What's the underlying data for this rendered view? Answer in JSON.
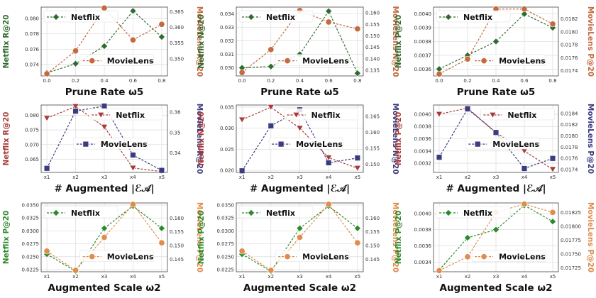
{
  "colors": {
    "netflix_green": "#2f6b2f",
    "movielens_orange": "#c46a3e",
    "netflix_red": "#a83a3a",
    "movielens_navy": "#3b3b80",
    "netflix_green2": "#2b8a2b",
    "movielens_orange2": "#e08c4c",
    "grid": "#d6d6d6",
    "axis": "#444444"
  },
  "chart_data": [
    {
      "id": "r0c0",
      "type": "line",
      "xlabel": "Prune Rate ω5",
      "x_is_categorical": false,
      "x": [
        0.0,
        0.2,
        0.4,
        0.6,
        0.8
      ],
      "xticks": [
        "0.0",
        "0.2",
        "0.4",
        "0.6",
        "0.8"
      ],
      "xlim": [
        -0.04,
        0.84
      ],
      "left": {
        "ylabel": "Netflix R@20",
        "color_key": "netflix_green",
        "ylim": [
          0.0725,
          0.0815
        ],
        "yticks": [
          "0.074",
          "0.076",
          "0.078",
          "0.080"
        ],
        "ytick_values": [
          0.074,
          0.076,
          0.078,
          0.08
        ]
      },
      "right": {
        "ylabel": "MovieLens R@20",
        "color_key": "movielens_orange",
        "ylim": [
          0.3445,
          0.3665
        ],
        "yticks": [
          "0.350",
          "0.355",
          "0.360",
          "0.365"
        ],
        "ytick_values": [
          0.35,
          0.355,
          0.36,
          0.365
        ]
      },
      "series": [
        {
          "name": "Netflix",
          "axis": "left",
          "marker": "diamond",
          "values": [
            0.0729,
            0.0741,
            0.0764,
            0.081,
            0.0776
          ]
        },
        {
          "name": "MovieLens",
          "axis": "right",
          "marker": "circle",
          "values": [
            0.3452,
            0.3525,
            0.3662,
            0.356,
            0.361
          ]
        }
      ],
      "legend": [
        {
          "name": "Netflix",
          "pos": "top-left"
        },
        {
          "name": "MovieLens",
          "pos": "lower-right"
        }
      ]
    },
    {
      "id": "r0c1",
      "type": "line",
      "xlabel": "Prune Rate ω5",
      "x_is_categorical": false,
      "x": [
        0.0,
        0.2,
        0.4,
        0.6,
        0.8
      ],
      "xticks": [
        "0.0",
        "0.2",
        "0.4",
        "0.6",
        "0.8"
      ],
      "xlim": [
        -0.04,
        0.84
      ],
      "left": {
        "ylabel": "Netflix N@20",
        "color_key": "netflix_green",
        "ylim": [
          0.0294,
          0.0345
        ],
        "yticks": [
          "0.030",
          "0.031",
          "0.032",
          "0.033",
          "0.034"
        ],
        "ytick_values": [
          0.03,
          0.031,
          0.032,
          0.033,
          0.034
        ]
      },
      "right": {
        "ylabel": "MovieLens N@20",
        "color_key": "movielens_orange",
        "ylim": [
          0.1325,
          0.1625
        ],
        "yticks": [
          "0.135",
          "0.140",
          "0.145",
          "0.150",
          "0.155",
          "0.160"
        ],
        "ytick_values": [
          0.135,
          0.14,
          0.145,
          0.15,
          0.155,
          0.16
        ]
      },
      "series": [
        {
          "name": "Netflix",
          "axis": "left",
          "marker": "diamond",
          "values": [
            0.03,
            0.0301,
            0.031,
            0.0342,
            0.0296
          ]
        },
        {
          "name": "MovieLens",
          "axis": "right",
          "marker": "circle",
          "values": [
            0.134,
            0.144,
            0.161,
            0.156,
            0.153
          ]
        }
      ],
      "legend": [
        {
          "name": "Netflix",
          "pos": "top-left"
        },
        {
          "name": "MovieLens",
          "pos": "lower-right"
        }
      ]
    },
    {
      "id": "r0c2",
      "type": "line",
      "xlabel": "Prune Rate ω5",
      "x_is_categorical": false,
      "x": [
        0.0,
        0.2,
        0.4,
        0.6,
        0.8
      ],
      "xticks": [
        "0.0",
        "0.2",
        "0.4",
        "0.6",
        "0.8"
      ],
      "xlim": [
        -0.04,
        0.84
      ],
      "left": {
        "ylabel": "Netflix P@20",
        "color_key": "netflix_green",
        "ylim": [
          0.00355,
          0.00405
        ],
        "yticks": [
          "0.0036",
          "0.0037",
          "0.0038",
          "0.0039",
          "0.0040"
        ],
        "ytick_values": [
          0.0036,
          0.0037,
          0.0038,
          0.0039,
          0.004
        ]
      },
      "right": {
        "ylabel": "MovieLens P@20",
        "color_key": "movielens_orange",
        "ylim": [
          0.01732,
          0.01838
        ],
        "yticks": [
          "0.0174",
          "0.0176",
          "0.0178",
          "0.0180",
          "0.0182"
        ],
        "ytick_values": [
          0.0174,
          0.0176,
          0.0178,
          0.018,
          0.0182
        ]
      },
      "series": [
        {
          "name": "Netflix",
          "axis": "left",
          "marker": "diamond",
          "values": [
            0.0036,
            0.0037,
            0.0038,
            0.004,
            0.0039
          ]
        },
        {
          "name": "MovieLens",
          "axis": "right",
          "marker": "circle",
          "values": [
            0.01735,
            0.01758,
            0.01835,
            0.01835,
            0.01812
          ]
        }
      ],
      "legend": [
        {
          "name": "Netflix",
          "pos": "top-left"
        },
        {
          "name": "MovieLens",
          "pos": "lower-right"
        }
      ]
    },
    {
      "id": "r1c0",
      "type": "line",
      "xlabel": "# Augmented |ℰ𝒜|",
      "x_is_categorical": true,
      "x": [
        1,
        2,
        3,
        4,
        5
      ],
      "xticks": [
        "x1",
        "x2",
        "x3",
        "x4",
        "x5"
      ],
      "xlim": [
        0.8,
        5.2
      ],
      "left": {
        "ylabel": "Netflix R@20",
        "color_key": "netflix_red",
        "ylim": [
          0.0605,
          0.0835
        ],
        "yticks": [
          "0.065",
          "0.070",
          "0.075",
          "0.080"
        ],
        "ytick_values": [
          0.065,
          0.07,
          0.075,
          0.08
        ]
      },
      "right": {
        "ylabel": "MovieLens R@20",
        "color_key": "movielens_navy",
        "ylim": [
          0.3305,
          0.3635
        ],
        "yticks": [
          "0.34",
          "0.35",
          "0.36"
        ],
        "ytick_values": [
          0.34,
          0.35,
          0.36
        ]
      },
      "series": [
        {
          "name": "Netflix",
          "axis": "left",
          "marker": "triangle-down",
          "values": [
            0.079,
            0.083,
            0.076,
            0.062,
            0.0608
          ]
        },
        {
          "name": "MovieLens",
          "axis": "right",
          "marker": "square",
          "values": [
            0.3325,
            0.3605,
            0.363,
            0.339,
            0.3315
          ]
        }
      ],
      "legend": [
        {
          "name": "Netflix",
          "pos": "top-right"
        },
        {
          "name": "MovieLens",
          "pos": "center"
        }
      ]
    },
    {
      "id": "r1c1",
      "type": "line",
      "xlabel": "# Augmented |ℰ𝒜|",
      "x_is_categorical": true,
      "x": [
        1,
        2,
        3,
        4,
        5
      ],
      "xticks": [
        "x1",
        "x2",
        "x3",
        "x4",
        "x5"
      ],
      "xlim": [
        0.8,
        5.2
      ],
      "left": {
        "ylabel": "Netflix N@20",
        "color_key": "netflix_red",
        "ylim": [
          0.0195,
          0.0355
        ],
        "yticks": [
          "0.020",
          "0.025",
          "0.030",
          "0.035"
        ],
        "ytick_values": [
          0.02,
          0.025,
          0.03,
          0.035
        ]
      },
      "right": {
        "ylabel": "MovieLens N@20",
        "color_key": "movielens_navy",
        "ylim": [
          0.1475,
          0.1685
        ],
        "yticks": [
          "0.150",
          "0.155",
          "0.160",
          "0.165"
        ],
        "ytick_values": [
          0.15,
          0.155,
          0.16,
          0.165
        ]
      },
      "series": [
        {
          "name": "Netflix",
          "axis": "left",
          "marker": "triangle-down",
          "values": [
            0.032,
            0.035,
            0.03,
            0.023,
            0.0205
          ]
        },
        {
          "name": "MovieLens",
          "axis": "right",
          "marker": "square",
          "values": [
            0.148,
            0.162,
            0.167,
            0.1505,
            0.152
          ]
        }
      ],
      "legend": [
        {
          "name": "Netflix",
          "pos": "top-right"
        },
        {
          "name": "MovieLens",
          "pos": "center"
        }
      ]
    },
    {
      "id": "r1c2",
      "type": "line",
      "xlabel": "# Augmented |ℰ𝒜|",
      "x_is_categorical": true,
      "x": [
        1,
        2,
        3,
        4,
        5
      ],
      "xticks": [
        "x1",
        "x2",
        "x3",
        "x4",
        "x5"
      ],
      "xlim": [
        0.8,
        5.2
      ],
      "left": {
        "ylabel": "Netflix P@20",
        "color_key": "netflix_red",
        "ylim": [
          0.00305,
          0.00415
        ],
        "yticks": [
          "0.0032",
          "0.0034",
          "0.0036",
          "0.0038",
          "0.0040"
        ],
        "ytick_values": [
          0.0032,
          0.0034,
          0.0036,
          0.0038,
          0.004
        ]
      },
      "right": {
        "ylabel": "MovieLens P@20",
        "color_key": "movielens_navy",
        "ylim": [
          0.01735,
          0.01855
        ],
        "yticks": [
          "0.0174",
          "0.0176",
          "0.0178",
          "0.0180",
          "0.0182",
          "0.0184"
        ],
        "ytick_values": [
          0.0174,
          0.0176,
          0.0178,
          0.018,
          0.0182,
          0.0184
        ]
      },
      "series": [
        {
          "name": "Netflix",
          "axis": "left",
          "marker": "triangle-down",
          "values": [
            0.004,
            0.0041,
            0.0037,
            0.0034,
            0.0031
          ]
        },
        {
          "name": "MovieLens",
          "axis": "right",
          "marker": "square",
          "values": [
            0.01762,
            0.01848,
            0.01806,
            0.01742,
            0.0176
          ]
        }
      ],
      "legend": [
        {
          "name": "Netflix",
          "pos": "top-right"
        },
        {
          "name": "MovieLens",
          "pos": "center"
        }
      ]
    },
    {
      "id": "r2c0",
      "type": "line",
      "xlabel": "Augmented Scale ω2",
      "x_is_categorical": true,
      "x": [
        1,
        2,
        3,
        4,
        5
      ],
      "xticks": [
        "x1",
        "x2",
        "x3",
        "x4",
        "x5"
      ],
      "xlim": [
        0.8,
        5.2
      ],
      "left": {
        "ylabel": "Netflix P@20",
        "color_key": "netflix_green2",
        "ylim": [
          0.0221,
          0.0354
        ],
        "yticks": [
          "0.0225",
          "0.0250",
          "0.0275",
          "0.0300",
          "0.0325",
          "0.0350"
        ],
        "ytick_values": [
          0.0225,
          0.025,
          0.0275,
          0.03,
          0.0325,
          0.035
        ]
      },
      "right": {
        "ylabel": "MovieLens P@20",
        "color_key": "movielens_orange2",
        "ylim": [
          0.1405,
          0.1655
        ],
        "yticks": [
          "0.145",
          "0.150",
          "0.155",
          "0.160"
        ],
        "ytick_values": [
          0.145,
          0.15,
          0.155,
          0.16
        ]
      },
      "series": [
        {
          "name": "Netflix",
          "axis": "left",
          "marker": "diamond",
          "values": [
            0.0255,
            0.0222,
            0.0305,
            0.0348,
            0.0305
          ]
        },
        {
          "name": "MovieLens",
          "axis": "right",
          "marker": "circle",
          "values": [
            0.148,
            0.141,
            0.153,
            0.165,
            0.151
          ]
        }
      ],
      "legend": [
        {
          "name": "Netflix",
          "pos": "top-left"
        },
        {
          "name": "MovieLens",
          "pos": "lower-right"
        }
      ]
    },
    {
      "id": "r2c1",
      "type": "line",
      "xlabel": "Augmented Scale ω2",
      "x_is_categorical": true,
      "x": [
        1,
        2,
        3,
        4,
        5
      ],
      "xticks": [
        "x1",
        "x2",
        "x3",
        "x4",
        "x5"
      ],
      "xlim": [
        0.8,
        5.2
      ],
      "left": {
        "ylabel": "Netflix P@20",
        "color_key": "netflix_green2",
        "ylim": [
          0.0221,
          0.0354
        ],
        "yticks": [
          "0.0225",
          "0.0250",
          "0.0275",
          "0.0300",
          "0.0325",
          "0.0350"
        ],
        "ytick_values": [
          0.0225,
          0.025,
          0.0275,
          0.03,
          0.0325,
          0.035
        ]
      },
      "right": {
        "ylabel": "MovieLens P@20",
        "color_key": "movielens_orange2",
        "ylim": [
          0.1405,
          0.1655
        ],
        "yticks": [
          "0.145",
          "0.150",
          "0.155",
          "0.160"
        ],
        "ytick_values": [
          0.145,
          0.15,
          0.155,
          0.16
        ]
      },
      "series": [
        {
          "name": "Netflix",
          "axis": "left",
          "marker": "diamond",
          "values": [
            0.0255,
            0.0222,
            0.0305,
            0.0348,
            0.0305
          ]
        },
        {
          "name": "MovieLens",
          "axis": "right",
          "marker": "circle",
          "values": [
            0.148,
            0.141,
            0.153,
            0.165,
            0.151
          ]
        }
      ],
      "legend": [
        {
          "name": "Netflix",
          "pos": "top-left"
        },
        {
          "name": "MovieLens",
          "pos": "lower-right"
        }
      ]
    },
    {
      "id": "r2c2",
      "type": "line",
      "xlabel": "Augmented Scale ω2",
      "x_is_categorical": true,
      "x": [
        1,
        2,
        3,
        4,
        5
      ],
      "xticks": [
        "x1",
        "x2",
        "x3",
        "x4",
        "x5"
      ],
      "xlim": [
        0.8,
        5.2
      ],
      "left": {
        "ylabel": "Netflix P@20",
        "color_key": "netflix_green2",
        "ylim": [
          0.00328,
          0.00413
        ],
        "yticks": [
          "0.0034",
          "0.0036",
          "0.0038",
          "0.0040"
        ],
        "ytick_values": [
          0.0034,
          0.0036,
          0.0038,
          0.004
        ]
      },
      "right": {
        "ylabel": "MovieLens P@20",
        "color_key": "movielens_orange2",
        "ylim": [
          0.01718,
          0.01842
        ],
        "yticks": [
          "0.01725",
          "0.01750",
          "0.01775",
          "0.01800",
          "0.01825"
        ],
        "ytick_values": [
          0.01725,
          0.0175,
          0.01775,
          0.018,
          0.01825
        ]
      },
      "series": [
        {
          "name": "Netflix",
          "axis": "left",
          "marker": "diamond",
          "values": [
            0.0033,
            0.0037,
            0.0038,
            0.0041,
            0.0039
          ]
        },
        {
          "name": "MovieLens",
          "axis": "right",
          "marker": "circle",
          "values": [
            0.0172,
            0.01745,
            0.01825,
            0.0184,
            0.01825
          ]
        }
      ],
      "legend": [
        {
          "name": "Netflix",
          "pos": "top-left"
        },
        {
          "name": "MovieLens",
          "pos": "lower-right"
        }
      ]
    }
  ]
}
